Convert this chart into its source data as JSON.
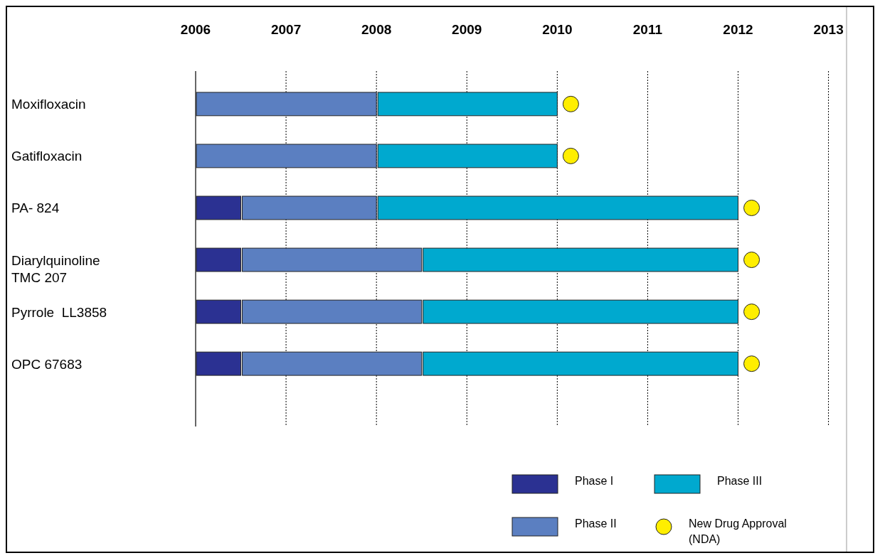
{
  "chart_data": {
    "type": "bar",
    "orientation": "horizontal",
    "categories": [
      "Moxifloxacin",
      "Gatifloxacin",
      "PA- 824",
      "Diarylquinoline\nTMC 207",
      "Pyrrole  LL3858",
      "OPC 67683"
    ],
    "series": [
      {
        "name": "Phase I",
        "color": "#2b3192",
        "base": [
          null,
          null,
          2006,
          2006,
          2006,
          2006
        ],
        "values": [
          null,
          null,
          0.5,
          0.5,
          0.5,
          0.5
        ]
      },
      {
        "name": "Phase II",
        "color": "#5b7fc1",
        "base": [
          2006,
          2006,
          2006.5,
          2006.5,
          2006.5,
          2006.5
        ],
        "values": [
          2,
          2,
          1.5,
          2,
          2,
          2
        ]
      },
      {
        "name": "Phase III",
        "color": "#00a9cf",
        "base": [
          2008,
          2008,
          2008,
          2008.5,
          2008.5,
          2008.5
        ],
        "values": [
          2,
          2,
          4,
          3.5,
          3.5,
          3.5
        ]
      },
      {
        "name": "New Drug Approval (NDA)",
        "type": "scatter",
        "color": "#ffee00",
        "marker": "circle",
        "values": [
          2010.15,
          2010.15,
          2012.15,
          2012.15,
          2012.15,
          2012.15
        ]
      }
    ],
    "xlim": [
      2006,
      2013.2
    ],
    "xticks": [
      2006,
      2007,
      2008,
      2009,
      2010,
      2011,
      2012,
      2013
    ],
    "grid": "x",
    "legend": "bottom right"
  }
}
